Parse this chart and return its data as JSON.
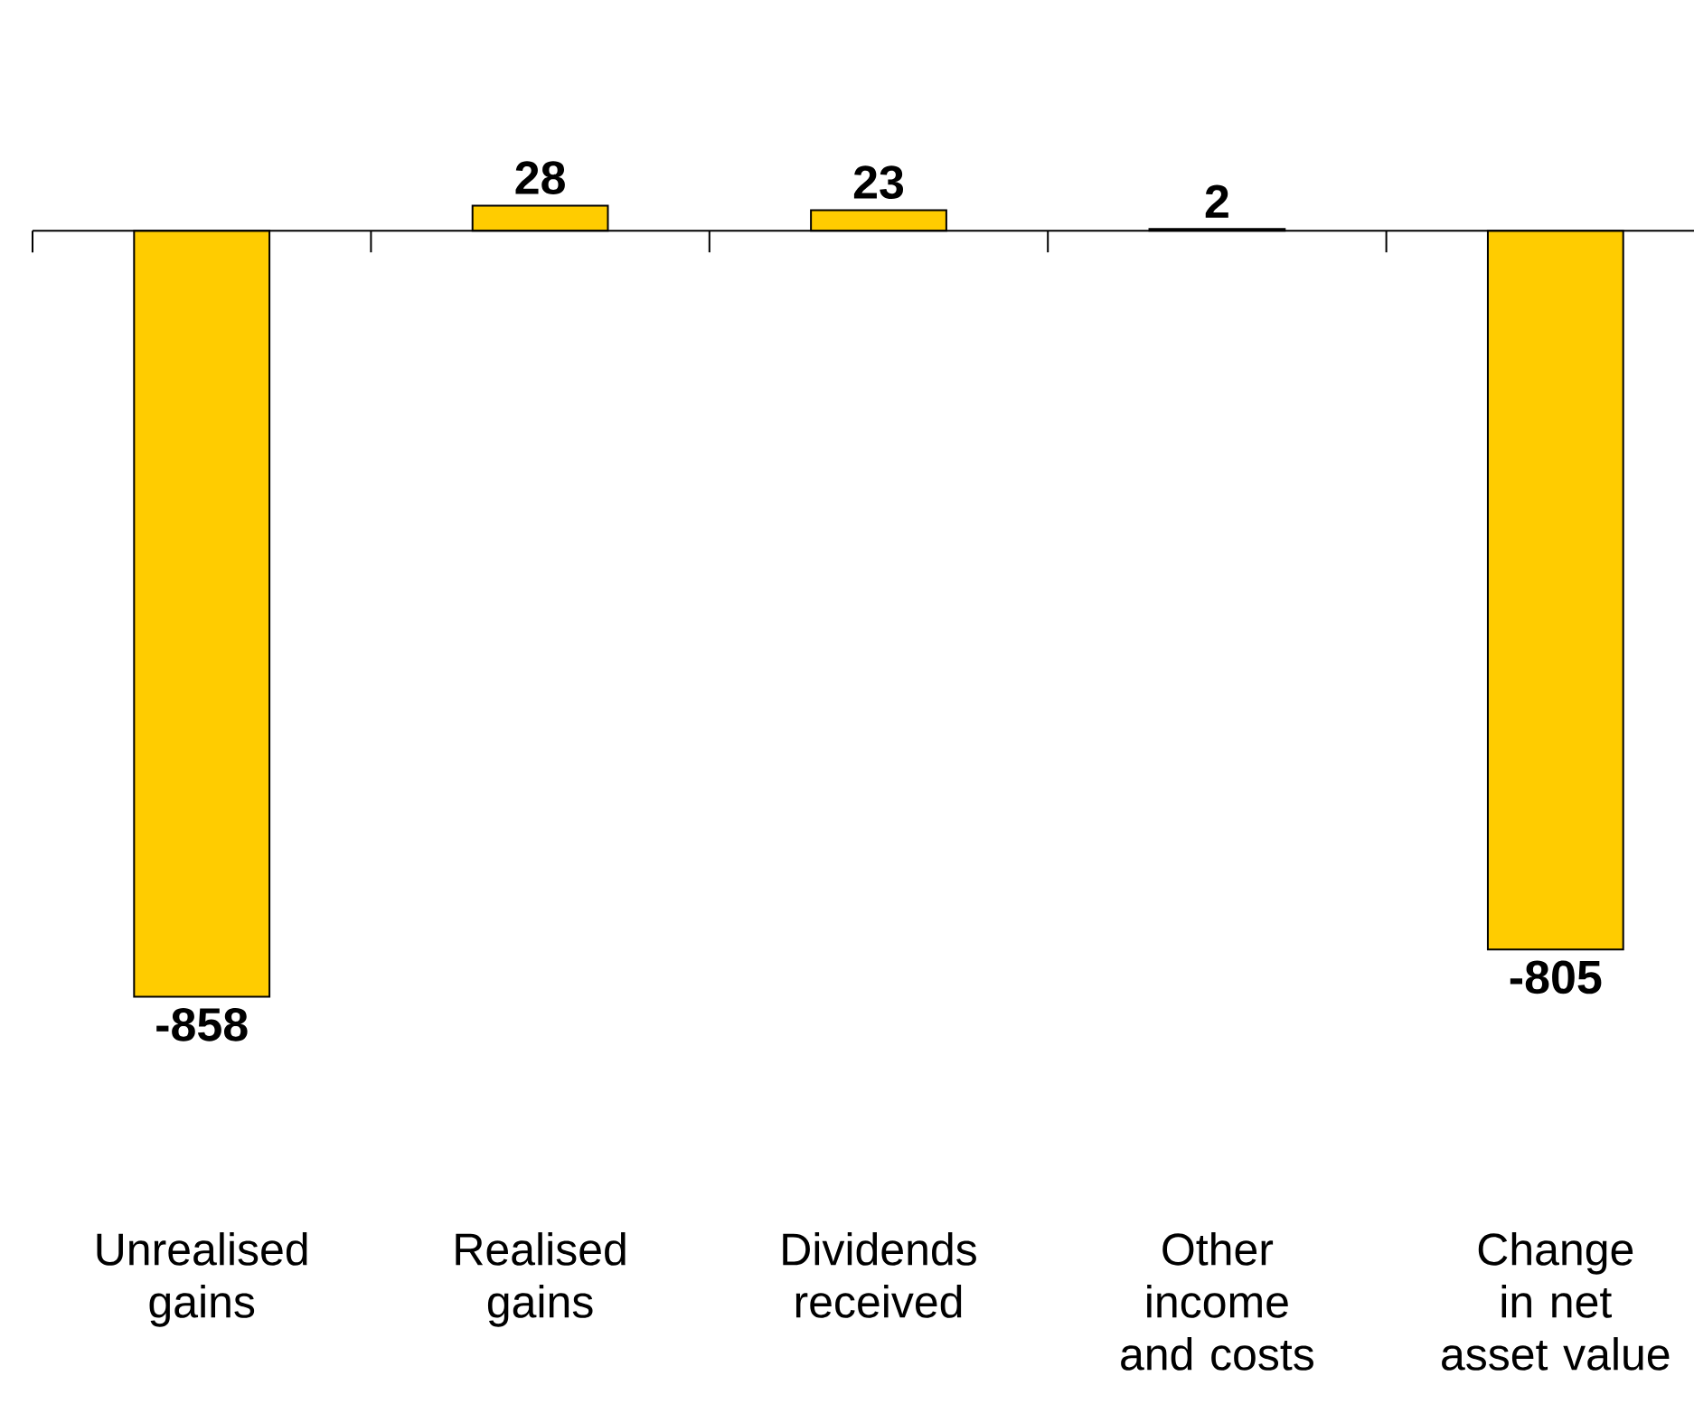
{
  "chart_data": {
    "type": "bar",
    "categories": [
      "Unrealised gains",
      "Realised gains",
      "Dividends received",
      "Other income and costs",
      "Change in net asset value"
    ],
    "values": [
      -858,
      28,
      23,
      2,
      -805
    ],
    "color": "#ffcc00",
    "data_labels": true
  }
}
